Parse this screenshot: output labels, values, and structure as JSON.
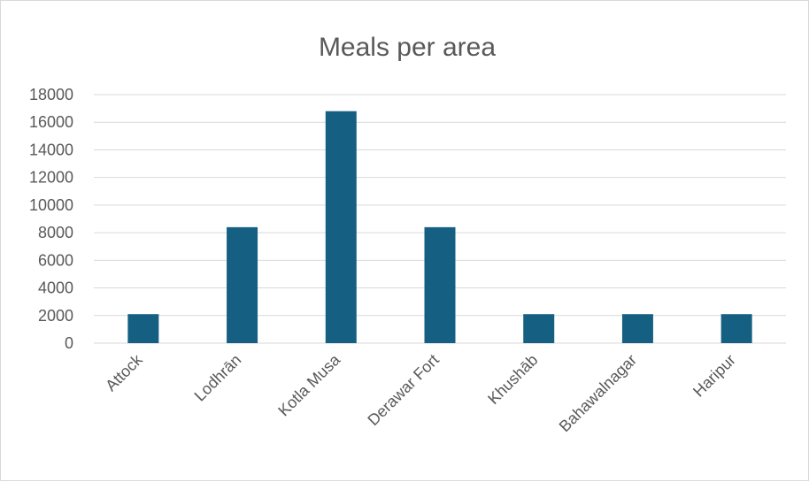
{
  "chart_data": {
    "type": "bar",
    "title": "Meals per area",
    "categories": [
      "Attock",
      "Lodhrān",
      "Kotla Musa",
      "Derawar Fort",
      "Khushāb",
      "Bahawalnagar",
      "Haripur"
    ],
    "values": [
      2100,
      8400,
      16800,
      8400,
      2100,
      2100,
      2100
    ],
    "ylim": [
      0,
      18000
    ],
    "yticks": [
      "0",
      "2000",
      "4000",
      "6000",
      "8000",
      "10000",
      "12000",
      "14000",
      "16000",
      "18000"
    ],
    "grid": true,
    "legend": "none",
    "bar_color": "#156082",
    "grid_color": "#d9d9d9"
  }
}
